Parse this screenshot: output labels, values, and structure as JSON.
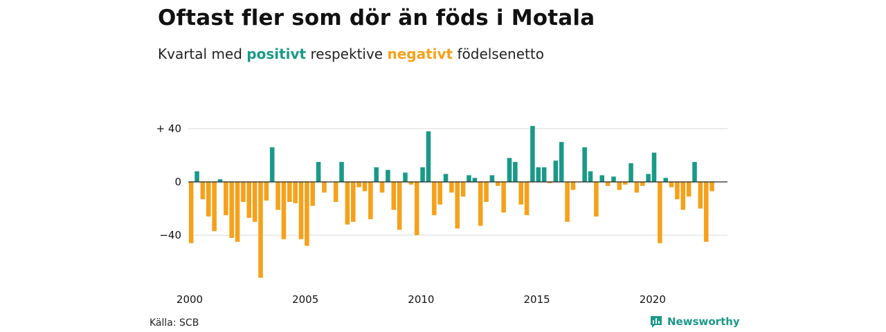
{
  "title": "Oftast fler som dör än föds i Motala",
  "subtitle": {
    "prefix": "Kvartal med ",
    "positive": "positivt",
    "middle": " respektive ",
    "negative": "negativt",
    "suffix": " födelsenetto"
  },
  "source": "Källa: SCB",
  "logo": {
    "text": "Newsworthy",
    "icon": "newsworthy-logo-icon"
  },
  "colors": {
    "positive": "#1a9988",
    "negative": "#f5a11a",
    "grid": "#d9d9d9",
    "zero": "#222222"
  },
  "chart_data": {
    "type": "bar",
    "frequency": "quarterly",
    "x_start": "2000-Q1",
    "ylim": [
      -80,
      45
    ],
    "y_ticks": [
      40,
      0,
      -40
    ],
    "y_tick_labels": [
      "+ 40",
      "0",
      "−40"
    ],
    "x_ticks": [
      "2000",
      "2005",
      "2010",
      "2015",
      "2020"
    ],
    "grid": true,
    "values": [
      -46,
      8,
      -13,
      -26,
      -37,
      2,
      -25,
      -42,
      -45,
      -15,
      -27,
      -30,
      -72,
      -14,
      26,
      -21,
      -43,
      -15,
      -16,
      -43,
      -48,
      -18,
      15,
      -8,
      0,
      -15,
      15,
      -32,
      -30,
      -4,
      -7,
      -28,
      11,
      -8,
      9,
      -21,
      -36,
      7,
      -2,
      -40,
      11,
      38,
      -25,
      -17,
      6,
      -8,
      -35,
      -11,
      5,
      3,
      -33,
      -15,
      5,
      -3,
      -23,
      18,
      15,
      -17,
      -25,
      42,
      11,
      11,
      -1,
      16,
      30,
      -30,
      -6,
      0,
      26,
      8,
      -26,
      5,
      -3,
      4,
      -6,
      -2,
      14,
      -8,
      -3,
      6,
      22,
      -46,
      3,
      -4,
      -13,
      -21,
      -11,
      15,
      -20,
      -45,
      -7
    ]
  }
}
